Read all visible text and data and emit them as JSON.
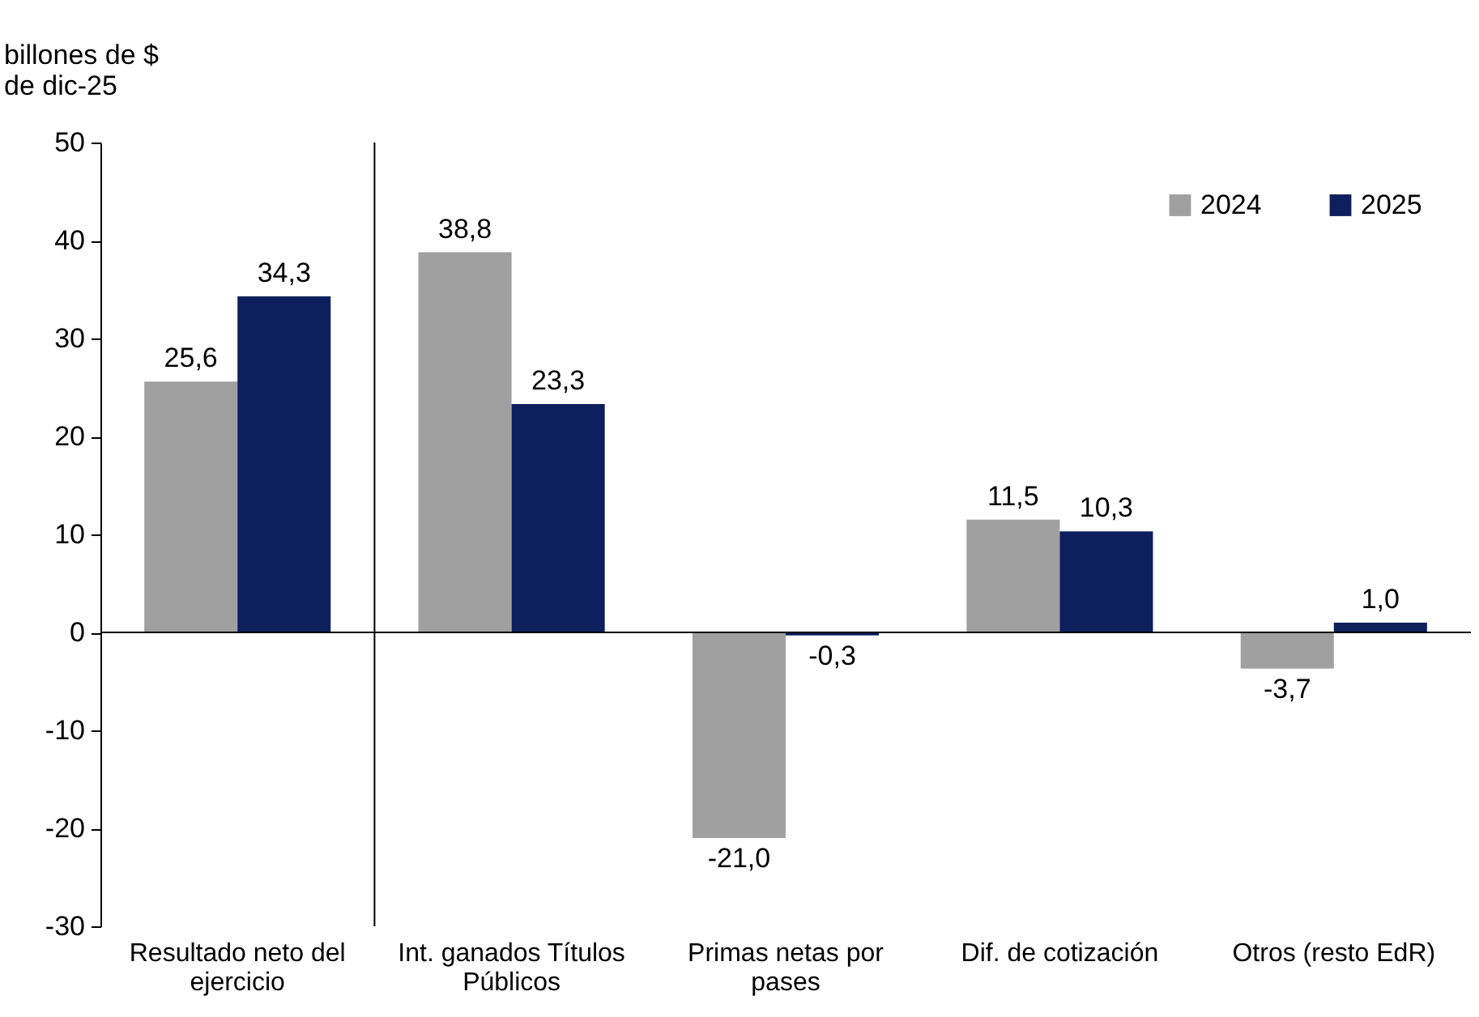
{
  "chart_data": {
    "type": "bar",
    "ylabel": "billones de $\nde dic-25",
    "categories": [
      "Resultado neto del ejercicio",
      "Int. ganados Títulos Públicos",
      "Primas netas por pases",
      "Dif. de cotización",
      "Otros (resto EdR)"
    ],
    "series": [
      {
        "name": "2024",
        "color": "#a0a0a0",
        "values": [
          25.6,
          38.8,
          -21.0,
          11.5,
          -3.7
        ],
        "value_labels": [
          "25,6",
          "38,8",
          "-21,0",
          "11,5",
          "-3,7"
        ]
      },
      {
        "name": "2025",
        "color": "#0d1f5c",
        "values": [
          34.3,
          23.3,
          -0.3,
          10.3,
          1.0
        ],
        "value_labels": [
          "34,3",
          "23,3",
          "-0,3",
          "10,3",
          "1,0"
        ]
      }
    ],
    "ylim": [
      -30,
      50
    ],
    "yticks": [
      -30,
      -20,
      -10,
      0,
      10,
      20,
      30,
      40,
      50
    ],
    "legend": "top right"
  }
}
